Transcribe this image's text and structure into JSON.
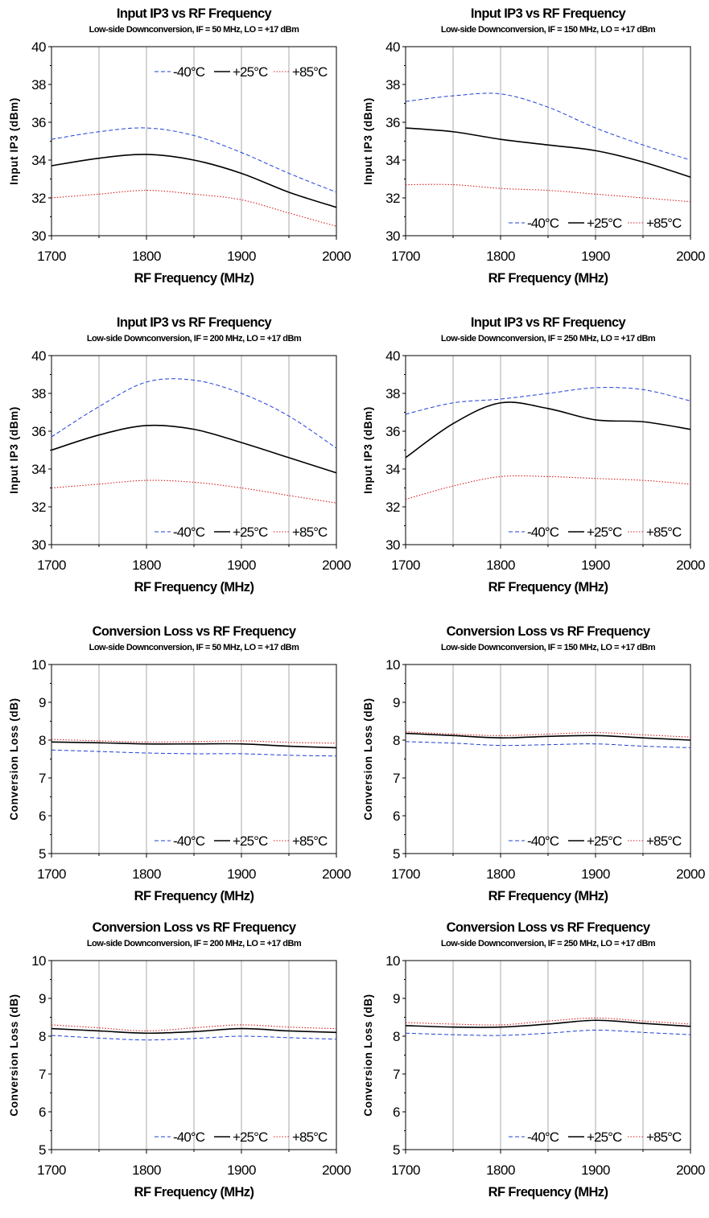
{
  "series_styles": [
    {
      "name": "-40°C",
      "color": "#1f3fd6",
      "dash": "5,3",
      "width": 1
    },
    {
      "name": "+25°C",
      "color": "#000000",
      "dash": "",
      "width": 1.6
    },
    {
      "name": "+85°C",
      "color": "#d42020",
      "dash": "1.5,2",
      "width": 1.1
    }
  ],
  "chart_data": [
    {
      "type": "line",
      "title": "Input IP3 vs RF Frequency",
      "subtitle": "Low-side Downconversion, IF = 50 MHz, LO = +17 dBm",
      "xlabel": "RF Frequency (MHz)",
      "ylabel": "Input IP3 (dBm)",
      "xlim": [
        1700,
        2000
      ],
      "ylim": [
        30,
        40
      ],
      "xticks": [
        1700,
        1800,
        1900,
        2000
      ],
      "yticks": [
        30,
        32,
        34,
        36,
        38,
        40
      ],
      "grid": "vertical",
      "legend": "top-right",
      "x": [
        1700,
        1750,
        1800,
        1850,
        1900,
        1950,
        2000
      ],
      "series": [
        {
          "name": "-40°C",
          "values": [
            35.1,
            35.5,
            35.7,
            35.3,
            34.4,
            33.3,
            32.3
          ]
        },
        {
          "name": "+25°C",
          "values": [
            33.7,
            34.1,
            34.3,
            34.0,
            33.3,
            32.3,
            31.5
          ]
        },
        {
          "name": "+85°C",
          "values": [
            32.0,
            32.2,
            32.4,
            32.2,
            31.9,
            31.2,
            30.5
          ]
        }
      ]
    },
    {
      "type": "line",
      "title": "Input IP3 vs RF Frequency",
      "subtitle": "Low-side Downconversion, IF = 150 MHz, LO = +17 dBm",
      "xlabel": "RF Frequency (MHz)",
      "ylabel": "Input IP3 (dBm)",
      "xlim": [
        1700,
        2000
      ],
      "ylim": [
        30,
        40
      ],
      "xticks": [
        1700,
        1800,
        1900,
        2000
      ],
      "yticks": [
        30,
        32,
        34,
        36,
        38,
        40
      ],
      "grid": "vertical",
      "legend": "bottom-right",
      "x": [
        1700,
        1750,
        1800,
        1850,
        1900,
        1950,
        2000
      ],
      "series": [
        {
          "name": "-40°C",
          "values": [
            37.1,
            37.4,
            37.5,
            36.8,
            35.7,
            34.8,
            34.0
          ]
        },
        {
          "name": "+25°C",
          "values": [
            35.7,
            35.5,
            35.1,
            34.8,
            34.5,
            33.9,
            33.1
          ]
        },
        {
          "name": "+85°C",
          "values": [
            32.7,
            32.7,
            32.5,
            32.4,
            32.2,
            32.0,
            31.8
          ]
        }
      ]
    },
    {
      "type": "line",
      "title": "Input IP3 vs RF Frequency",
      "subtitle": "Low-side Downconversion, IF = 200 MHz, LO = +17 dBm",
      "xlabel": "RF Frequency (MHz)",
      "ylabel": "Input IP3 (dBm)",
      "xlim": [
        1700,
        2000
      ],
      "ylim": [
        30,
        40
      ],
      "xticks": [
        1700,
        1800,
        1900,
        2000
      ],
      "yticks": [
        30,
        32,
        34,
        36,
        38,
        40
      ],
      "grid": "vertical",
      "legend": "bottom-right",
      "x": [
        1700,
        1750,
        1800,
        1850,
        1900,
        1950,
        2000
      ],
      "series": [
        {
          "name": "-40°C",
          "values": [
            35.7,
            37.3,
            38.6,
            38.7,
            38.0,
            36.8,
            35.1
          ]
        },
        {
          "name": "+25°C",
          "values": [
            35.0,
            35.8,
            36.3,
            36.1,
            35.4,
            34.6,
            33.8
          ]
        },
        {
          "name": "+85°C",
          "values": [
            33.0,
            33.2,
            33.4,
            33.3,
            33.0,
            32.6,
            32.2
          ]
        }
      ]
    },
    {
      "type": "line",
      "title": "Input IP3 vs RF Frequency",
      "subtitle": "Low-side Downconversion, IF = 250 MHz, LO = +17 dBm",
      "xlabel": "RF Frequency (MHz)",
      "ylabel": "Input IP3 (dBm)",
      "xlim": [
        1700,
        2000
      ],
      "ylim": [
        30,
        40
      ],
      "xticks": [
        1700,
        1800,
        1900,
        2000
      ],
      "yticks": [
        30,
        32,
        34,
        36,
        38,
        40
      ],
      "grid": "vertical",
      "legend": "bottom-right",
      "x": [
        1700,
        1750,
        1800,
        1850,
        1900,
        1950,
        2000
      ],
      "series": [
        {
          "name": "-40°C",
          "values": [
            36.9,
            37.5,
            37.7,
            38.0,
            38.3,
            38.2,
            37.6
          ]
        },
        {
          "name": "+25°C",
          "values": [
            34.6,
            36.4,
            37.5,
            37.2,
            36.6,
            36.5,
            36.1
          ]
        },
        {
          "name": "+85°C",
          "values": [
            32.4,
            33.1,
            33.6,
            33.6,
            33.5,
            33.4,
            33.2
          ]
        }
      ]
    },
    {
      "type": "line",
      "title": "Conversion Loss vs RF Frequency",
      "subtitle": "Low-side Downconversion, IF = 50 MHz, LO = +17 dBm",
      "xlabel": "RF Frequency (MHz)",
      "ylabel": "Conversion Loss (dB)",
      "xlim": [
        1700,
        2000
      ],
      "ylim": [
        5,
        10
      ],
      "xticks": [
        1700,
        1800,
        1900,
        2000
      ],
      "yticks": [
        5,
        6,
        7,
        8,
        9,
        10
      ],
      "grid": "vertical",
      "legend": "bottom-right",
      "x": [
        1700,
        1750,
        1800,
        1850,
        1900,
        1950,
        2000
      ],
      "series": [
        {
          "name": "-40°C",
          "values": [
            7.74,
            7.7,
            7.66,
            7.64,
            7.64,
            7.6,
            7.58
          ]
        },
        {
          "name": "+25°C",
          "values": [
            7.95,
            7.93,
            7.9,
            7.9,
            7.9,
            7.84,
            7.8
          ]
        },
        {
          "name": "+85°C",
          "values": [
            8.02,
            7.98,
            7.95,
            7.96,
            7.98,
            7.94,
            7.92
          ]
        }
      ]
    },
    {
      "type": "line",
      "title": "Conversion Loss vs RF Frequency",
      "subtitle": "Low-side Downconversion, IF = 150 MHz, LO = +17 dBm",
      "xlabel": "RF Frequency (MHz)",
      "ylabel": "Conversion Loss (dB)",
      "xlim": [
        1700,
        2000
      ],
      "ylim": [
        5,
        10
      ],
      "xticks": [
        1700,
        1800,
        1900,
        2000
      ],
      "yticks": [
        5,
        6,
        7,
        8,
        9,
        10
      ],
      "grid": "vertical",
      "legend": "bottom-right",
      "x": [
        1700,
        1750,
        1800,
        1850,
        1900,
        1950,
        2000
      ],
      "series": [
        {
          "name": "-40°C",
          "values": [
            7.96,
            7.92,
            7.86,
            7.88,
            7.9,
            7.84,
            7.8
          ]
        },
        {
          "name": "+25°C",
          "values": [
            8.18,
            8.12,
            8.06,
            8.1,
            8.12,
            8.06,
            8.0
          ]
        },
        {
          "name": "+85°C",
          "values": [
            8.22,
            8.16,
            8.12,
            8.16,
            8.2,
            8.14,
            8.08
          ]
        }
      ]
    },
    {
      "type": "line",
      "title": "Conversion Loss vs RF Frequency",
      "subtitle": "Low-side Downconversion, IF = 200 MHz, LO = +17 dBm",
      "xlabel": "RF Frequency (MHz)",
      "ylabel": "Conversion Loss (dB)",
      "xlim": [
        1700,
        2000
      ],
      "ylim": [
        5,
        10
      ],
      "xticks": [
        1700,
        1800,
        1900,
        2000
      ],
      "yticks": [
        5,
        6,
        7,
        8,
        9,
        10
      ],
      "grid": "vertical",
      "legend": "bottom-right",
      "x": [
        1700,
        1750,
        1800,
        1850,
        1900,
        1950,
        2000
      ],
      "series": [
        {
          "name": "-40°C",
          "values": [
            8.02,
            7.95,
            7.9,
            7.94,
            8.0,
            7.96,
            7.92
          ]
        },
        {
          "name": "+25°C",
          "values": [
            8.2,
            8.14,
            8.08,
            8.12,
            8.2,
            8.14,
            8.1
          ]
        },
        {
          "name": "+85°C",
          "values": [
            8.3,
            8.22,
            8.14,
            8.22,
            8.3,
            8.24,
            8.2
          ]
        }
      ]
    },
    {
      "type": "line",
      "title": "Conversion Loss vs RF Frequency",
      "subtitle": "Low-side Downconversion, IF = 250 MHz, LO = +17 dBm",
      "xlabel": "RF Frequency (MHz)",
      "ylabel": "Conversion Loss (dB)",
      "xlim": [
        1700,
        2000
      ],
      "ylim": [
        5,
        10
      ],
      "xticks": [
        1700,
        1800,
        1900,
        2000
      ],
      "yticks": [
        5,
        6,
        7,
        8,
        9,
        10
      ],
      "grid": "vertical",
      "legend": "bottom-right",
      "x": [
        1700,
        1750,
        1800,
        1850,
        1900,
        1950,
        2000
      ],
      "series": [
        {
          "name": "-40°C",
          "values": [
            8.08,
            8.04,
            8.02,
            8.08,
            8.16,
            8.1,
            8.04
          ]
        },
        {
          "name": "+25°C",
          "values": [
            8.28,
            8.24,
            8.24,
            8.32,
            8.42,
            8.34,
            8.26
          ]
        },
        {
          "name": "+85°C",
          "values": [
            8.36,
            8.32,
            8.3,
            8.4,
            8.48,
            8.4,
            8.32
          ]
        }
      ]
    }
  ]
}
